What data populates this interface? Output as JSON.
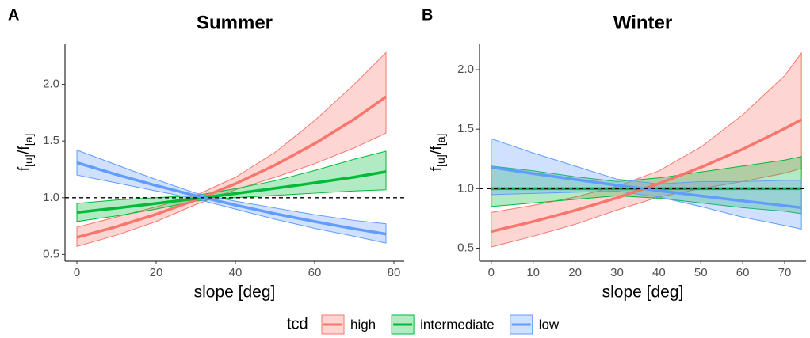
{
  "chart_data": [
    {
      "type": "line",
      "panel_label": "A",
      "title": "Summer",
      "xlabel": "slope [deg]",
      "ylabel": [
        "f",
        "[u]",
        "/f",
        "[a]"
      ],
      "legend_title": "tcd",
      "x": [
        0,
        10,
        20,
        30,
        40,
        50,
        60,
        70,
        78
      ],
      "xlim": [
        -3,
        82.6
      ],
      "ylim": [
        0.44,
        2.36
      ],
      "xticks": [
        0,
        20,
        40,
        60,
        80
      ],
      "yticks": [
        {
          "value": 0.5,
          "label": "0.5"
        },
        {
          "value": 1,
          "label": "1.0"
        },
        {
          "value": 1.5,
          "label": "1.5"
        },
        {
          "value": 2,
          "label": "2.0"
        }
      ],
      "hline": 1,
      "series": [
        {
          "name": "high",
          "color": "#F8766D",
          "values": [
            0.65,
            0.745,
            0.854,
            0.98,
            1.123,
            1.288,
            1.477,
            1.693,
            1.89
          ],
          "lower": [
            0.57,
            0.67,
            0.79,
            0.94,
            1.07,
            1.18,
            1.3,
            1.44,
            1.57
          ],
          "upper": [
            0.74,
            0.83,
            0.92,
            1.02,
            1.18,
            1.4,
            1.68,
            2.0,
            2.28
          ]
        },
        {
          "name": "intermediate",
          "color": "#00BA38",
          "values": [
            0.87,
            0.909,
            0.95,
            0.992,
            1.037,
            1.083,
            1.131,
            1.182,
            1.23
          ],
          "lower": [
            0.79,
            0.84,
            0.9,
            0.97,
            1.0,
            1.02,
            1.04,
            1.06,
            1.07
          ],
          "upper": [
            0.95,
            0.98,
            1.0,
            1.02,
            1.08,
            1.15,
            1.24,
            1.34,
            1.41
          ]
        },
        {
          "name": "low",
          "color": "#619CFF",
          "values": [
            1.31,
            1.204,
            1.107,
            1.017,
            0.935,
            0.859,
            0.79,
            0.726,
            0.68
          ],
          "lower": [
            1.2,
            1.13,
            1.06,
            0.99,
            0.9,
            0.81,
            0.73,
            0.66,
            0.6
          ],
          "upper": [
            1.42,
            1.29,
            1.16,
            1.04,
            0.97,
            0.91,
            0.85,
            0.8,
            0.77
          ]
        }
      ]
    },
    {
      "type": "line",
      "panel_label": "B",
      "title": "Winter",
      "xlabel": "slope [deg]",
      "ylabel": [
        "f",
        "[u]",
        "/f",
        "[a]"
      ],
      "x": [
        0,
        10,
        20,
        30,
        40,
        50,
        60,
        70,
        74
      ],
      "xlim": [
        -2.8,
        75.1
      ],
      "ylim": [
        0.39,
        2.22
      ],
      "xticks": [
        0,
        10,
        20,
        30,
        40,
        50,
        60,
        70
      ],
      "yticks": [
        {
          "value": 0.5,
          "label": "0.5"
        },
        {
          "value": 1,
          "label": "1.0"
        },
        {
          "value": 1.5,
          "label": "1.5"
        },
        {
          "value": 2,
          "label": "2.0"
        }
      ],
      "hline": 1,
      "series": [
        {
          "name": "high",
          "color": "#F8766D",
          "values": [
            0.64,
            0.723,
            0.817,
            0.923,
            1.043,
            1.179,
            1.332,
            1.505,
            1.58
          ],
          "lower": [
            0.51,
            0.6,
            0.7,
            0.82,
            0.93,
            1.0,
            1.06,
            1.13,
            1.17
          ],
          "upper": [
            0.8,
            0.86,
            0.93,
            1.02,
            1.15,
            1.35,
            1.62,
            1.95,
            2.14
          ]
        },
        {
          "name": "intermediate",
          "color": "#00BA38",
          "values": [
            1.0,
            1.0,
            1.0,
            1.0,
            1.0,
            1.0,
            1.0,
            1.0,
            1.0
          ],
          "lower": [
            0.85,
            0.88,
            0.91,
            0.94,
            0.92,
            0.88,
            0.84,
            0.81,
            0.79
          ],
          "upper": [
            1.19,
            1.15,
            1.1,
            1.06,
            1.09,
            1.14,
            1.19,
            1.24,
            1.27
          ]
        },
        {
          "name": "low",
          "color": "#619CFF",
          "values": [
            1.18,
            1.127,
            1.077,
            1.029,
            0.983,
            0.939,
            0.897,
            0.857,
            0.84
          ],
          "lower": [
            0.95,
            0.96,
            0.97,
            0.98,
            0.93,
            0.85,
            0.76,
            0.69,
            0.66
          ],
          "upper": [
            1.42,
            1.3,
            1.19,
            1.08,
            1.04,
            1.06,
            1.06,
            1.07,
            1.07
          ]
        }
      ]
    }
  ]
}
